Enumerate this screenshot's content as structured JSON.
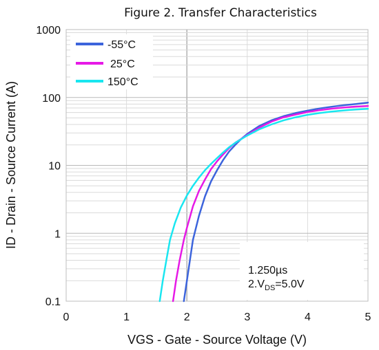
{
  "chart_data": {
    "type": "line",
    "title": "Figure 2. Transfer Characteristics",
    "xlabel": "VGS - Gate - Source Voltage (V)",
    "ylabel": "ID - Drain - Source Current (A)",
    "xlim": [
      0,
      5
    ],
    "ylim": [
      0.1,
      1000
    ],
    "yscale": "log",
    "xticks": [
      "0",
      "1",
      "2",
      "3",
      "4",
      "5"
    ],
    "yticks": [
      "0.1",
      "1",
      "10",
      "100",
      "1000"
    ],
    "grid": true,
    "legend_position": "top-left",
    "series": [
      {
        "name": "-55°C",
        "color": "#3c64dc",
        "points": [
          [
            1.95,
            0.1
          ],
          [
            2.0,
            0.2
          ],
          [
            2.05,
            0.4
          ],
          [
            2.1,
            0.8
          ],
          [
            2.2,
            1.8
          ],
          [
            2.3,
            3.5
          ],
          [
            2.4,
            5.8
          ],
          [
            2.5,
            8.5
          ],
          [
            2.6,
            12
          ],
          [
            2.7,
            16
          ],
          [
            2.8,
            20
          ],
          [
            2.9,
            24.5
          ],
          [
            3.0,
            29
          ],
          [
            3.2,
            38
          ],
          [
            3.4,
            46
          ],
          [
            3.6,
            53
          ],
          [
            3.8,
            59
          ],
          [
            4.0,
            64
          ],
          [
            4.2,
            69
          ],
          [
            4.4,
            73
          ],
          [
            4.6,
            77
          ],
          [
            4.8,
            80
          ],
          [
            5.0,
            84
          ]
        ]
      },
      {
        "name": "25°C",
        "color": "#e619e6",
        "points": [
          [
            1.77,
            0.1
          ],
          [
            1.82,
            0.2
          ],
          [
            1.88,
            0.4
          ],
          [
            1.95,
            0.8
          ],
          [
            2.0,
            1.2
          ],
          [
            2.1,
            2.5
          ],
          [
            2.2,
            4.2
          ],
          [
            2.3,
            6.2
          ],
          [
            2.4,
            8.8
          ],
          [
            2.5,
            11.5
          ],
          [
            2.6,
            14.5
          ],
          [
            2.7,
            18
          ],
          [
            2.8,
            21.5
          ],
          [
            3.0,
            28
          ],
          [
            3.2,
            36
          ],
          [
            3.4,
            44
          ],
          [
            3.6,
            51
          ],
          [
            3.8,
            56
          ],
          [
            4.0,
            61
          ],
          [
            4.2,
            65
          ],
          [
            4.4,
            68.5
          ],
          [
            4.6,
            71
          ],
          [
            4.8,
            73.5
          ],
          [
            5.0,
            75
          ]
        ]
      },
      {
        "name": "150°C",
        "color": "#19e6f0",
        "points": [
          [
            1.55,
            0.1
          ],
          [
            1.6,
            0.2
          ],
          [
            1.66,
            0.4
          ],
          [
            1.72,
            0.8
          ],
          [
            1.8,
            1.4
          ],
          [
            1.9,
            2.4
          ],
          [
            2.0,
            3.6
          ],
          [
            2.1,
            5.0
          ],
          [
            2.2,
            6.6
          ],
          [
            2.3,
            8.5
          ],
          [
            2.4,
            10.5
          ],
          [
            2.5,
            12.8
          ],
          [
            2.6,
            15.5
          ],
          [
            2.7,
            18.5
          ],
          [
            2.8,
            21.5
          ],
          [
            3.0,
            27.5
          ],
          [
            3.2,
            34
          ],
          [
            3.4,
            40
          ],
          [
            3.6,
            46
          ],
          [
            3.8,
            51
          ],
          [
            4.0,
            55.5
          ],
          [
            4.2,
            59
          ],
          [
            4.4,
            62
          ],
          [
            4.6,
            64.5
          ],
          [
            4.8,
            66.5
          ],
          [
            5.0,
            68
          ]
        ]
      }
    ],
    "annotation_lines": [
      "1.250µs",
      "2.V",
      "DS",
      "=5.0V"
    ]
  }
}
